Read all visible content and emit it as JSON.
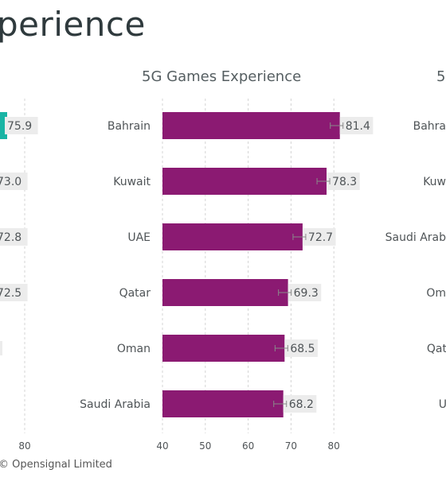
{
  "page": {
    "title": "perience",
    "copyright": "© Opensignal Limited"
  },
  "colors": {
    "center_bar": "#8b1a72",
    "left_bar": "#19b4a4",
    "value_bg": "#ececec",
    "grid": "#d4d4d4"
  },
  "chart_data": [
    {
      "type": "bar",
      "orientation": "horizontal",
      "title": "",
      "partial": true,
      "visible_categories": [],
      "values": [
        75.9,
        73.0,
        72.8,
        72.5
      ],
      "visible_ticks": [
        "80"
      ]
    },
    {
      "type": "bar",
      "orientation": "horizontal",
      "title": "5G Games Experience",
      "categories": [
        "Bahrain",
        "Kuwait",
        "UAE",
        "Qatar",
        "Oman",
        "Saudi Arabia"
      ],
      "values": [
        81.4,
        78.3,
        72.7,
        69.3,
        68.5,
        68.2
      ],
      "xlim": [
        40,
        80
      ],
      "xticks": [
        40,
        50,
        60,
        70,
        80
      ],
      "grid": true
    },
    {
      "type": "bar",
      "orientation": "horizontal",
      "title": "5",
      "partial": true,
      "categories": [
        "Bahra",
        "Kuw",
        "Saudi Arab",
        "Om",
        "Qat",
        "U"
      ]
    }
  ]
}
